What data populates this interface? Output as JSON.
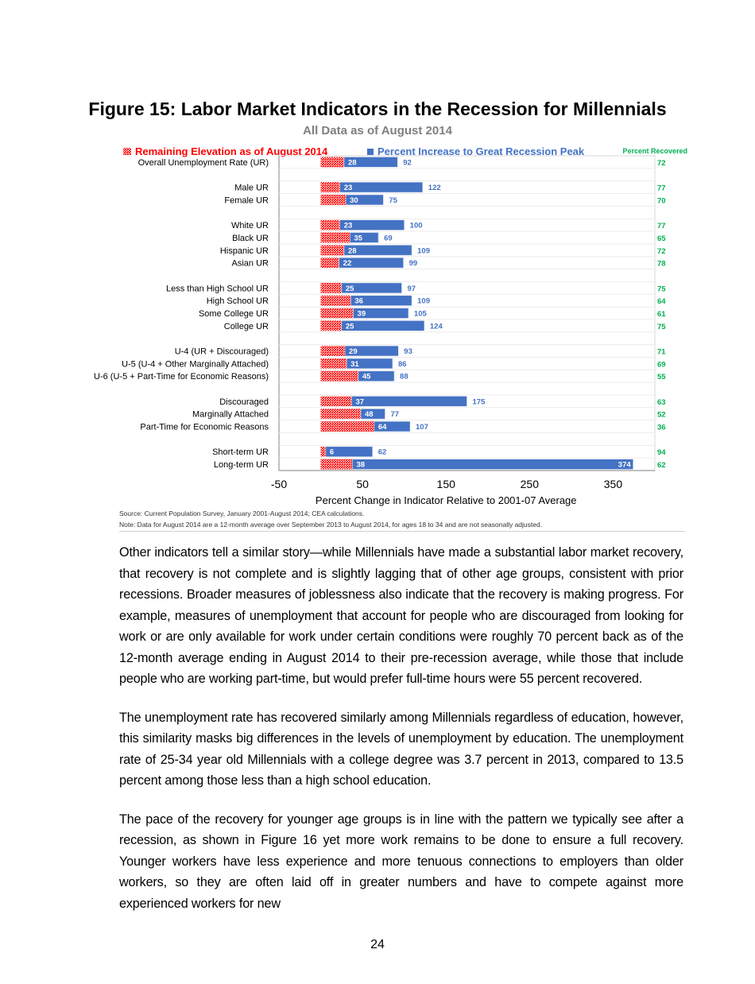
{
  "title": "Figure 15: Labor Market Indicators in the Recession for Millennials",
  "subtitle": "All Data as of August 2014",
  "chart_data": {
    "type": "bar",
    "orientation": "horizontal stacked",
    "legend": [
      {
        "name": "Remaining Elevation as of August 2014",
        "color": "#ff0000",
        "pattern": "hatched"
      },
      {
        "name": "Percent Increase to Great Recession Peak",
        "color": "#4472c4"
      }
    ],
    "legend_placement": "top",
    "right_label_header": "Percent Recovered",
    "right_label_color": "#00b050",
    "xlabel": "Percent Change in Indicator Relative to 2001-07 Average",
    "xlim": [
      -50,
      400
    ],
    "xticks": [
      -50,
      50,
      150,
      250,
      350
    ],
    "categories": [
      "Overall Unemployment Rate (UR)",
      "",
      "Male UR",
      "Female UR",
      "",
      "White UR",
      "Black UR",
      "Hispanic UR",
      "Asian UR",
      "",
      "Less than High School UR",
      "High School UR",
      "Some College UR",
      "College UR",
      "",
      "U-4 (UR + Discouraged)",
      "U-5 (U-4 + Other Marginally Attached)",
      "U-6 (U-5 + Part-Time for Economic Reasons)",
      "",
      "Discouraged",
      "Marginally Attached",
      "Part-Time for Economic Reasons",
      "",
      "Short-term UR",
      "Long-term UR"
    ],
    "remaining_elevation": [
      28,
      null,
      23,
      30,
      null,
      23,
      35,
      28,
      22,
      null,
      25,
      36,
      39,
      25,
      null,
      29,
      31,
      45,
      null,
      37,
      48,
      64,
      null,
      6,
      38
    ],
    "peak_increase": [
      92,
      null,
      122,
      75,
      null,
      100,
      69,
      109,
      99,
      null,
      97,
      109,
      105,
      124,
      null,
      93,
      86,
      88,
      null,
      175,
      77,
      107,
      null,
      62,
      374
    ],
    "percent_recovered": [
      72,
      null,
      77,
      70,
      null,
      77,
      65,
      72,
      78,
      null,
      75,
      64,
      61,
      75,
      null,
      71,
      69,
      55,
      null,
      63,
      52,
      36,
      null,
      94,
      62
    ],
    "grid": false
  },
  "source": "Source: Current Population Survey, January 2001-August 2014; CEA calculations.",
  "note": "Note: Data for August 2014 are a 12-month average over September 2013 to August 2014,  for ages 18 to 34 and are not seasonally adjusted.",
  "paragraphs": [
    "Other indicators tell a similar story—while Millennials have made a substantial labor market recovery, that recovery is not complete and is slightly lagging that of other age groups, consistent with prior recessions. Broader measures of joblessness also indicate that the recovery is making progress. For example, measures of unemployment that account for people who are discouraged from looking for work or are only available for work under certain conditions were roughly 70 percent back as of the 12-month average ending in August 2014 to their pre-recession average, while those that include people who are working part-time, but would prefer full-time hours were 55 percent recovered.",
    "The unemployment rate has recovered similarly among Millennials regardless of education, however, this similarity masks big differences in the levels of unemployment by education. The unemployment rate of 25-34 year old Millennials with a college degree was 3.7 percent in 2013, compared to 13.5 percent among those less than a high school education.",
    "The pace of the recovery for younger age groups is in line with the pattern we typically see after a recession, as shown in Figure 16 yet more work remains to be done to ensure a full recovery. Younger workers have less experience and more tenuous connections to employers than older workers, so they are often laid off in greater numbers and have to compete against more experienced workers for new"
  ],
  "page_number": "24"
}
